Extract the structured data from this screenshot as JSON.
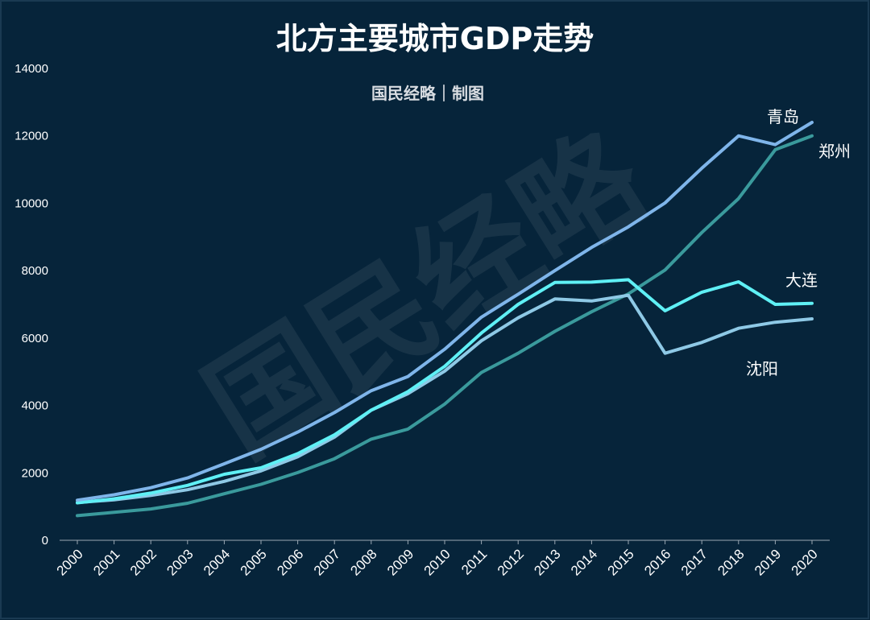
{
  "chart_data": {
    "type": "line",
    "title": "北方主要城市GDP走势",
    "subtitle": "国民经略｜制图",
    "watermark": "国民经略",
    "xlabel": "",
    "ylabel": "",
    "ylim": [
      0,
      14000
    ],
    "yticks": [
      0,
      2000,
      4000,
      6000,
      8000,
      10000,
      12000,
      14000
    ],
    "x": [
      "2000",
      "2001",
      "2002",
      "2003",
      "2004",
      "2005",
      "2006",
      "2007",
      "2008",
      "2009",
      "2010",
      "2011",
      "2012",
      "2013",
      "2014",
      "2015",
      "2016",
      "2017",
      "2018",
      "2019",
      "2020"
    ],
    "grid": false,
    "legend": "inline labels at line ends",
    "series": [
      {
        "name": "郑州",
        "color": "#3a9a9c",
        "values": [
          730,
          830,
          930,
          1100,
          1380,
          1660,
          2010,
          2420,
          3000,
          3300,
          4040,
          4980,
          5550,
          6200,
          6780,
          7310,
          8020,
          9130,
          10140,
          11590,
          12000
        ]
      },
      {
        "name": "沈阳",
        "color": "#8ec9e6",
        "values": [
          1120,
          1200,
          1330,
          1500,
          1750,
          2060,
          2480,
          3060,
          3860,
          4350,
          5020,
          5920,
          6600,
          7160,
          7100,
          7270,
          5550,
          5870,
          6290,
          6470,
          6570
        ]
      },
      {
        "name": "大连",
        "color": "#5ff0f5",
        "values": [
          1110,
          1230,
          1400,
          1630,
          1960,
          2150,
          2570,
          3130,
          3860,
          4410,
          5160,
          6150,
          7000,
          7650,
          7660,
          7730,
          6810,
          7360,
          7670,
          7000,
          7030
        ]
      },
      {
        "name": "青岛",
        "color": "#7fb5ea",
        "values": [
          1190,
          1350,
          1560,
          1850,
          2270,
          2700,
          3210,
          3790,
          4440,
          4860,
          5670,
          6620,
          7300,
          8000,
          8690,
          9300,
          10010,
          11040,
          12000,
          11740,
          12400
        ]
      }
    ],
    "labels": [
      {
        "series": "青岛",
        "text": "青岛"
      },
      {
        "series": "郑州",
        "text": "郑州"
      },
      {
        "series": "大连",
        "text": "大连"
      },
      {
        "series": "沈阳",
        "text": "沈阳"
      }
    ]
  }
}
